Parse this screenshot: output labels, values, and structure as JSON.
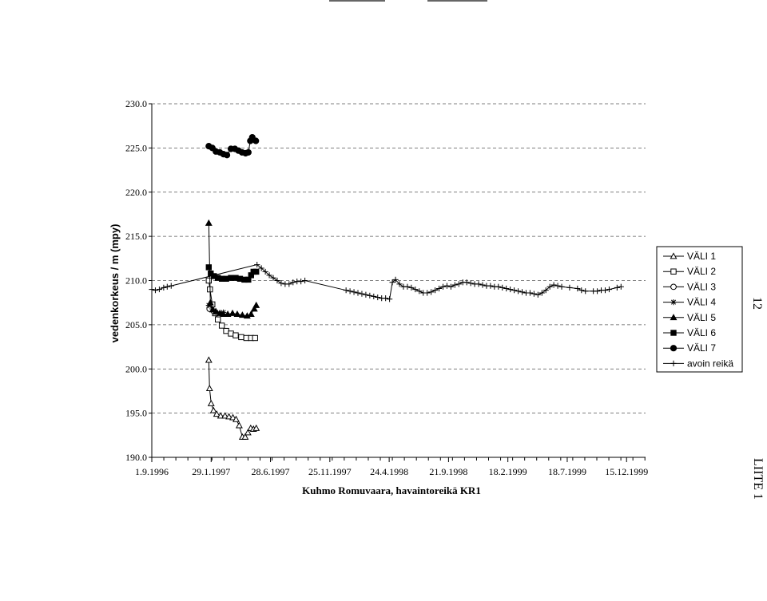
{
  "page": {
    "page_number": "12",
    "appendix": "LIITE 1"
  },
  "chart_data": {
    "type": "line",
    "xlabel": "Kuhmo Romuvaara, havaintoreikä KR1",
    "ylabel": "vedenkorkeus / m (mpy)",
    "ylim": [
      190,
      230
    ],
    "yticks": [
      190,
      195,
      200,
      205,
      210,
      215,
      220,
      225,
      230
    ],
    "ytick_labels": [
      "190.0",
      "195.0",
      "200.0",
      "205.0",
      "210.0",
      "215.0",
      "220.0",
      "225.0",
      "230.0"
    ],
    "xlim": [
      "1996-09-01",
      "2000-02-01"
    ],
    "xtick_labels": [
      "1.9.1996",
      "29.1.1997",
      "28.6.1997",
      "25.11.1997",
      "24.4.1998",
      "21.9.1998",
      "18.2.1999",
      "18.7.1999",
      "15.12.1999"
    ],
    "xtick_dates": [
      "1996-09-01",
      "1997-01-29",
      "1997-06-28",
      "1997-11-25",
      "1998-04-24",
      "1998-09-21",
      "1999-02-18",
      "1999-07-18",
      "1999-12-15"
    ],
    "grid": "horizontal dashed",
    "legend": "right",
    "colors": {
      "line": "#000000",
      "grid": "#555555"
    },
    "series": [
      {
        "name": "VÄLI 1",
        "marker": "triangle-open",
        "x": [
          "1997-01-23",
          "1997-01-25",
          "1997-01-29",
          "1997-02-04",
          "1997-02-12",
          "1997-02-22",
          "1997-03-05",
          "1997-03-15",
          "1997-03-25",
          "1997-04-02",
          "1997-04-10",
          "1997-04-18",
          "1997-04-25",
          "1997-05-02",
          "1997-05-09",
          "1997-05-16",
          "1997-05-23"
        ],
        "y": [
          201.0,
          197.8,
          196.1,
          195.3,
          194.9,
          194.7,
          194.7,
          194.6,
          194.5,
          194.3,
          193.6,
          192.3,
          192.3,
          192.8,
          193.3,
          193.2,
          193.3
        ]
      },
      {
        "name": "VÄLI 2",
        "marker": "square-open",
        "x": [
          "1997-01-23",
          "1997-01-26",
          "1997-02-01",
          "1997-02-08",
          "1997-02-15",
          "1997-02-25",
          "1997-03-08",
          "1997-03-20",
          "1997-04-01",
          "1997-04-15",
          "1997-04-28",
          "1997-05-10",
          "1997-05-20"
        ],
        "y": [
          210.0,
          209.0,
          207.3,
          206.3,
          205.6,
          204.9,
          204.3,
          204.0,
          203.8,
          203.6,
          203.5,
          203.5,
          203.5
        ]
      },
      {
        "name": "VÄLI 3",
        "marker": "circle-open",
        "x": [
          "1997-01-25",
          "1997-02-05"
        ],
        "y": [
          206.8,
          206.5
        ]
      },
      {
        "name": "VÄLI 4",
        "marker": "star",
        "x": [
          "1997-01-23",
          "1997-02-01",
          "1997-02-10",
          "1997-02-20",
          "1997-03-01"
        ],
        "y": [
          207.2,
          206.8,
          206.4,
          206.3,
          206.4
        ]
      },
      {
        "name": "VÄLI 5",
        "marker": "triangle-filled",
        "x": [
          "1997-01-23",
          "1997-01-27",
          "1997-02-02",
          "1997-02-10",
          "1997-02-20",
          "1997-03-01",
          "1997-03-12",
          "1997-03-24",
          "1997-04-05",
          "1997-04-18",
          "1997-04-30",
          "1997-05-10",
          "1997-05-18",
          "1997-05-23"
        ],
        "y": [
          216.5,
          207.5,
          206.7,
          206.5,
          206.3,
          206.2,
          206.2,
          206.3,
          206.2,
          206.1,
          206.0,
          206.2,
          206.8,
          207.2
        ]
      },
      {
        "name": "VÄLI 6",
        "marker": "square-filled",
        "x": [
          "1997-01-23",
          "1997-01-28",
          "1997-02-05",
          "1997-02-15",
          "1997-02-25",
          "1997-03-08",
          "1997-03-20",
          "1997-04-01",
          "1997-04-12",
          "1997-04-23",
          "1997-05-03",
          "1997-05-10",
          "1997-05-16",
          "1997-05-23"
        ],
        "y": [
          211.5,
          210.8,
          210.5,
          210.3,
          210.2,
          210.2,
          210.3,
          210.3,
          210.2,
          210.1,
          210.1,
          210.6,
          211.0,
          211.0
        ]
      },
      {
        "name": "VÄLI 7",
        "marker": "circle-filled",
        "x": [
          "1997-01-23",
          "1997-02-01",
          "1997-02-10",
          "1997-02-20",
          "1997-03-01",
          "1997-03-10",
          "1997-03-20",
          "1997-03-30",
          "1997-04-08",
          "1997-04-17",
          "1997-04-26",
          "1997-05-03",
          "1997-05-08",
          "1997-05-13",
          "1997-05-22"
        ],
        "y": [
          225.2,
          225.0,
          224.6,
          224.5,
          224.3,
          224.2,
          224.9,
          224.9,
          224.7,
          224.5,
          224.4,
          224.5,
          225.8,
          226.2,
          225.8
        ]
      },
      {
        "name": "avoin reikä",
        "marker": "plus",
        "x": [
          "1996-09-01",
          "1996-09-10",
          "1996-09-20",
          "1996-10-01",
          "1996-10-10",
          "1996-10-20",
          "1997-05-25",
          "1997-06-05",
          "1997-06-15",
          "1997-06-25",
          "1997-07-05",
          "1997-07-15",
          "1997-07-25",
          "1997-08-04",
          "1997-08-14",
          "1997-08-24",
          "1997-09-03",
          "1997-09-13",
          "1997-09-23",
          "1998-01-05",
          "1998-01-15",
          "1998-01-25",
          "1998-02-04",
          "1998-02-14",
          "1998-02-24",
          "1998-03-06",
          "1998-03-16",
          "1998-03-26",
          "1998-04-05",
          "1998-04-15",
          "1998-04-25",
          "1998-05-02",
          "1998-05-10",
          "1998-05-20",
          "1998-05-30",
          "1998-06-09",
          "1998-06-19",
          "1998-06-29",
          "1998-07-09",
          "1998-07-19",
          "1998-07-29",
          "1998-08-08",
          "1998-08-18",
          "1998-08-28",
          "1998-09-07",
          "1998-09-17",
          "1998-09-27",
          "1998-10-07",
          "1998-10-17",
          "1998-10-27",
          "1998-11-06",
          "1998-11-16",
          "1998-11-26",
          "1998-12-06",
          "1998-12-16",
          "1998-12-26",
          "1999-01-05",
          "1999-01-15",
          "1999-01-25",
          "1999-02-04",
          "1999-02-14",
          "1999-02-24",
          "1999-03-06",
          "1999-03-16",
          "1999-03-26",
          "1999-04-05",
          "1999-04-15",
          "1999-04-25",
          "1999-05-05",
          "1999-05-15",
          "1999-05-25",
          "1999-06-04",
          "1999-06-14",
          "1999-06-24",
          "1999-07-04",
          "1999-07-24",
          "1999-08-13",
          "1999-08-23",
          "1999-09-02",
          "1999-09-22",
          "1999-10-02",
          "1999-10-12",
          "1999-10-22",
          "1999-11-01",
          "1999-11-21",
          "1999-12-01"
        ],
        "y": [
          209.0,
          208.9,
          209.0,
          209.2,
          209.3,
          209.4,
          211.8,
          211.4,
          211.0,
          210.6,
          210.3,
          210.0,
          209.7,
          209.6,
          209.6,
          209.8,
          209.9,
          209.9,
          210.0,
          208.9,
          208.8,
          208.7,
          208.6,
          208.5,
          208.4,
          208.3,
          208.2,
          208.1,
          208.0,
          208.0,
          207.9,
          209.8,
          210.1,
          209.6,
          209.3,
          209.3,
          209.2,
          209.0,
          208.8,
          208.6,
          208.6,
          208.7,
          208.9,
          209.1,
          209.3,
          209.4,
          209.3,
          209.5,
          209.6,
          209.8,
          209.8,
          209.7,
          209.6,
          209.6,
          209.5,
          209.4,
          209.4,
          209.3,
          209.3,
          209.2,
          209.1,
          209.0,
          208.9,
          208.8,
          208.7,
          208.6,
          208.6,
          208.5,
          208.4,
          208.6,
          208.9,
          209.3,
          209.5,
          209.4,
          209.3,
          209.2,
          209.1,
          208.9,
          208.8,
          208.8,
          208.8,
          208.9,
          208.9,
          209.0,
          209.2,
          209.3
        ]
      }
    ]
  }
}
